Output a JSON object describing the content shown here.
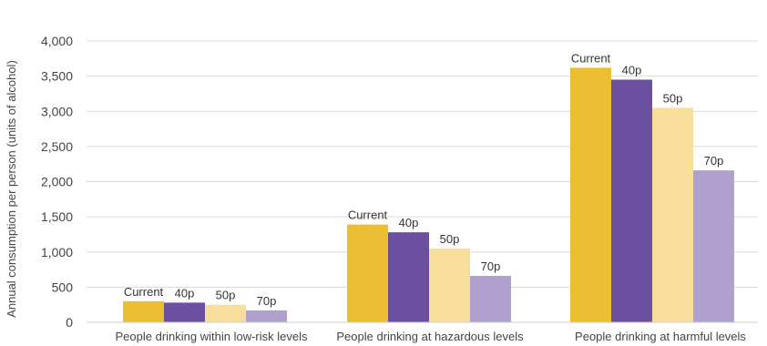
{
  "chart_data": {
    "type": "bar",
    "title": "",
    "xlabel": "",
    "ylabel": "Annual consumption per person (units of alcohol)",
    "ylim": [
      0,
      4000
    ],
    "yticks": [
      0,
      500,
      1000,
      1500,
      2000,
      2500,
      3000,
      3500,
      4000
    ],
    "ytick_labels": [
      "0",
      "500",
      "1,000",
      "1,500",
      "2,000",
      "2,500",
      "3,000",
      "3,500",
      "4,000"
    ],
    "grid": true,
    "categories": [
      "People drinking within low-risk levels",
      "People drinking at hazardous levels",
      "People drinking at harmful levels"
    ],
    "series": [
      {
        "name": "Current",
        "color": "#EBBE34",
        "values": [
          300,
          1390,
          3620
        ]
      },
      {
        "name": "40p",
        "color": "#6B50A0",
        "values": [
          280,
          1280,
          3450
        ]
      },
      {
        "name": "50p",
        "color": "#F7DE9A",
        "values": [
          250,
          1050,
          3050
        ]
      },
      {
        "name": "70p",
        "color": "#B0A0D0",
        "values": [
          170,
          660,
          2160
        ]
      }
    ]
  }
}
